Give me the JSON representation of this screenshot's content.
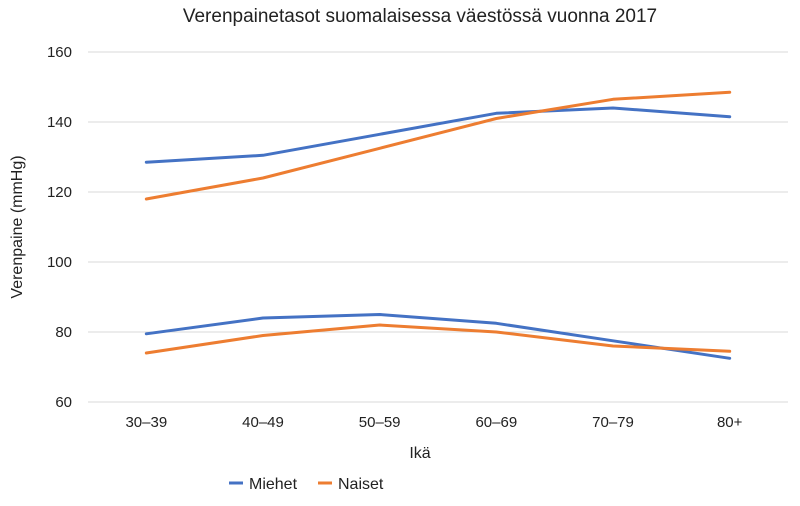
{
  "chart_data": {
    "type": "line",
    "title": "Verenpainetasot suomalaisessa väestössä vuonna 2017",
    "xlabel": "Ikä",
    "ylabel": "Verenpaine (mmHg)",
    "categories": [
      "30–39",
      "40–49",
      "50–59",
      "60–69",
      "70–79",
      "80+"
    ],
    "ylim": [
      60,
      160
    ],
    "yticks": [
      60,
      80,
      100,
      120,
      140,
      160
    ],
    "grid": true,
    "legend_position": "bottom",
    "legend": [
      {
        "name": "Miehet",
        "color": "#4472c4"
      },
      {
        "name": "Naiset",
        "color": "#ed7d31"
      }
    ],
    "series": [
      {
        "legend": "Miehet",
        "measure": "systolic",
        "color": "#4472c4",
        "values": [
          128.5,
          130.5,
          136.5,
          142.5,
          144,
          141.5
        ]
      },
      {
        "legend": "Naiset",
        "measure": "systolic",
        "color": "#ed7d31",
        "values": [
          118,
          124,
          132.5,
          141,
          146.5,
          148.5
        ]
      },
      {
        "legend": "Miehet",
        "measure": "diastolic",
        "color": "#4472c4",
        "values": [
          79.5,
          84,
          85,
          82.5,
          77.5,
          72.5
        ]
      },
      {
        "legend": "Naiset",
        "measure": "diastolic",
        "color": "#ed7d31",
        "values": [
          74,
          79,
          82,
          80,
          76,
          74.5
        ]
      }
    ]
  }
}
